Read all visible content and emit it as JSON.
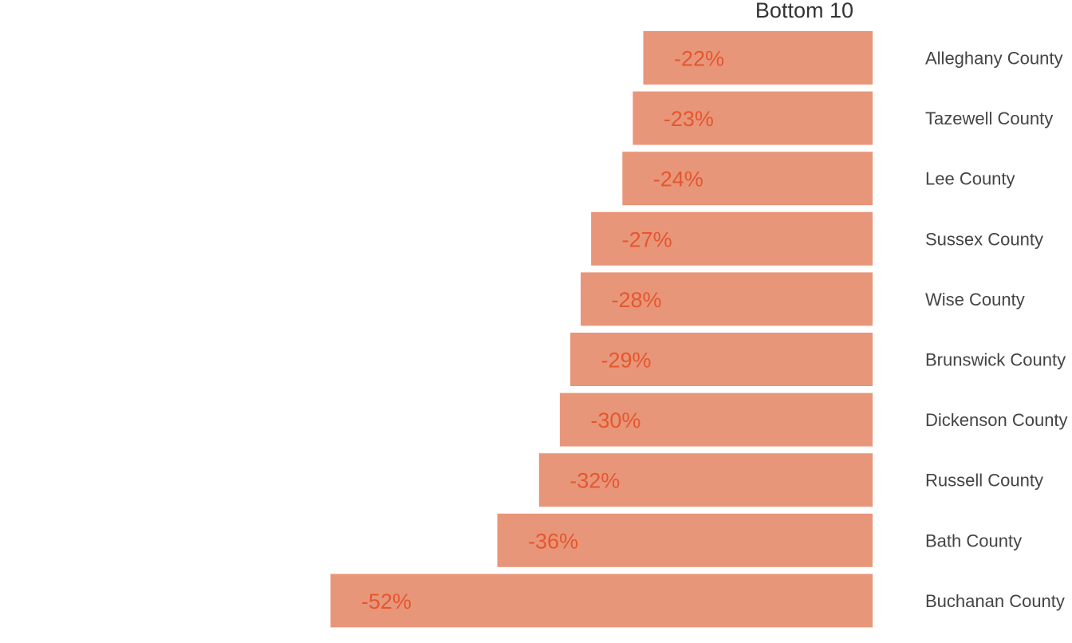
{
  "chart_data": {
    "type": "bar",
    "orientation": "horizontal",
    "title": "Bottom 10",
    "categories": [
      "Alleghany County",
      "Tazewell County",
      "Lee County",
      "Sussex County",
      "Wise County",
      "Brunswick County",
      "Dickenson County",
      "Russell County",
      "Bath County",
      "Buchanan County"
    ],
    "values": [
      -22,
      -23,
      -24,
      -27,
      -28,
      -29,
      -30,
      -32,
      -36,
      -52
    ],
    "data_labels": [
      "-22%",
      "-23%",
      "-24%",
      "-27%",
      "-28%",
      "-29%",
      "-30%",
      "-32%",
      "-36%",
      "-52%"
    ],
    "xlim": [
      -83,
      0
    ],
    "grid": false,
    "legend": "none",
    "bar_color": "#e8967a",
    "label_color": "#e4572e",
    "category_label_position": "right"
  }
}
